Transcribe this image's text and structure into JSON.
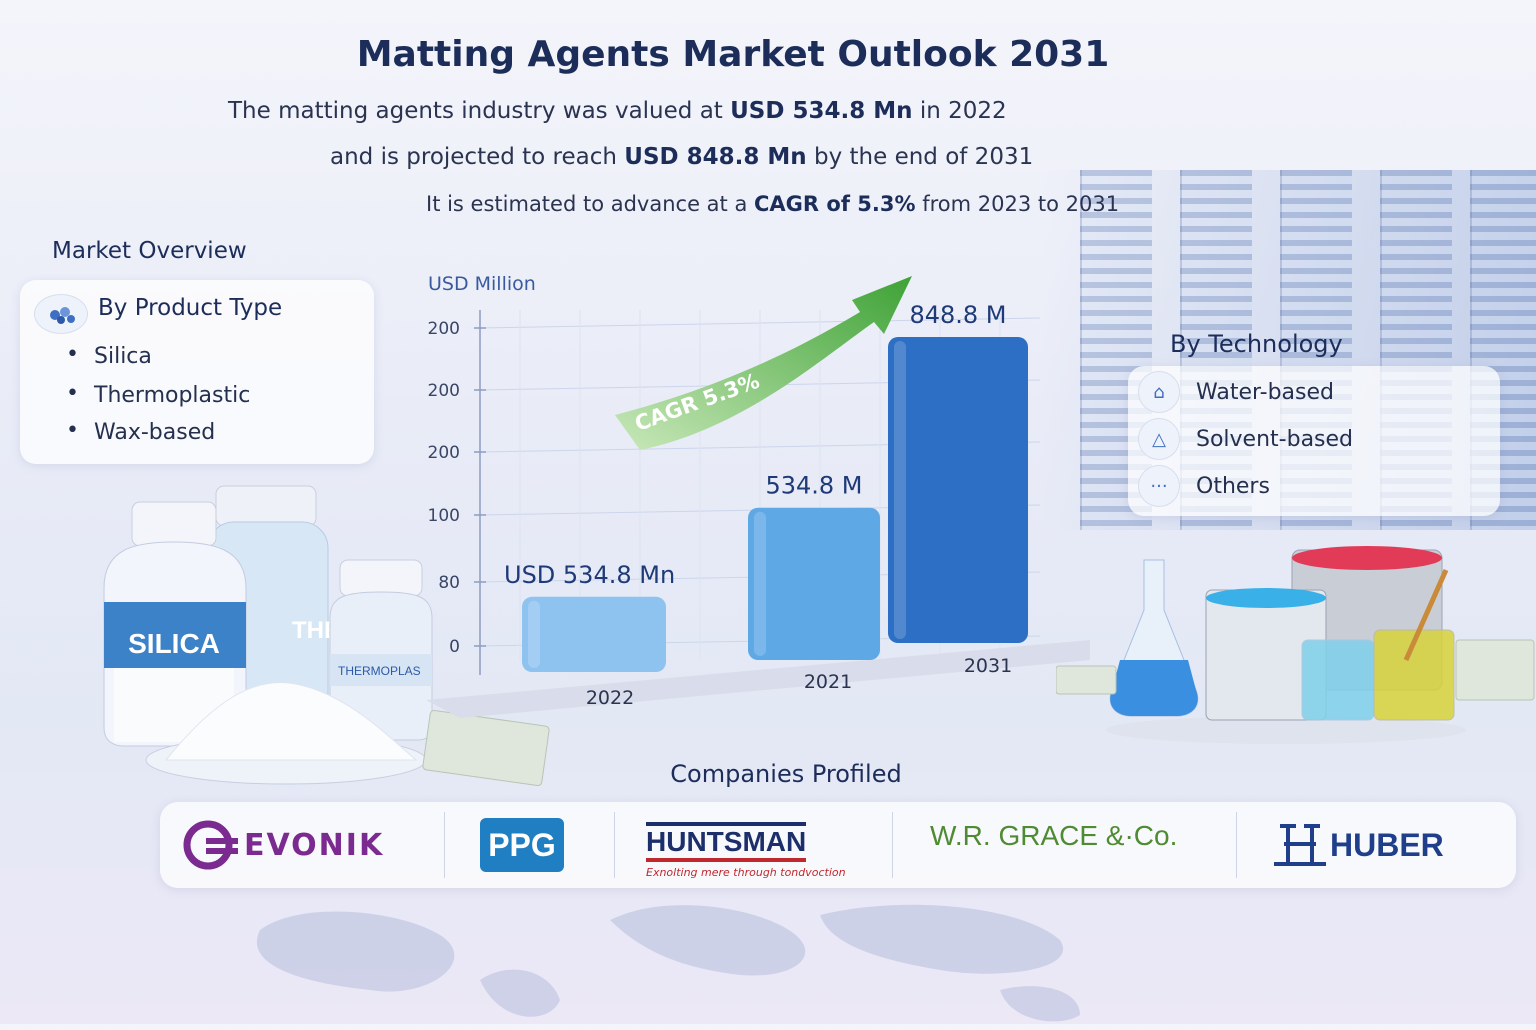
{
  "title": "Matting Agents Market Outlook 2031",
  "summary": {
    "line1_pre": "The matting agents industry was valued at",
    "line1_bold": "USD 534.8 Mn",
    "line1_post": "in 2022",
    "line2_pre": "and is projected to reach",
    "line2_bold": "USD 848.8 Mn",
    "line2_post": "by the end of 2031",
    "line3_pre": "It is estimated to advance at a",
    "line3_bold": "CAGR of 5.3%",
    "line3_post": "from 2023 to 2031"
  },
  "market_overview": {
    "heading": "Market Overview",
    "panel_title": "By Product Type",
    "items": [
      "Silica",
      "Thermoplastic",
      "Wax-based"
    ]
  },
  "technology": {
    "heading": "By Technology",
    "items": [
      "Water-based",
      "Solvent-based",
      "Others"
    ]
  },
  "jar_labels": {
    "silica": "SILICA",
    "thermo_big": "THER",
    "thermo_small": "THERMOPLAS"
  },
  "chart_data": {
    "type": "bar",
    "ylabel": "USD Million",
    "yticks": [
      "200",
      "200",
      "200",
      "100",
      "80",
      "0"
    ],
    "categories": [
      "2022",
      "2021",
      "2031"
    ],
    "values": [
      534.8,
      534.8,
      848.8
    ],
    "data_labels": [
      "USD 534.8 Mn",
      "534.8 M",
      "848.8 M"
    ],
    "annotation": "CAGR 5.3%",
    "colors": [
      "#8fc3ef",
      "#5ea8e6",
      "#2c6fc4"
    ]
  },
  "companies": {
    "heading": "Companies Profiled",
    "evonik": "EVONIK",
    "ppg": "PPG",
    "huntsman": "HUNTSMAN",
    "huntsman_tagline": "Exnolting mere through tondvoction",
    "grace": "W.R. GRACE &·Co.",
    "huber": "HUBER"
  },
  "colors": {
    "navy": "#1c2d5a",
    "evonik": "#7b2a8f",
    "ppg": "#1f7fc2",
    "huntsman": "#1d2f6b",
    "grace": "#4f8b32",
    "huber": "#203f8a"
  }
}
